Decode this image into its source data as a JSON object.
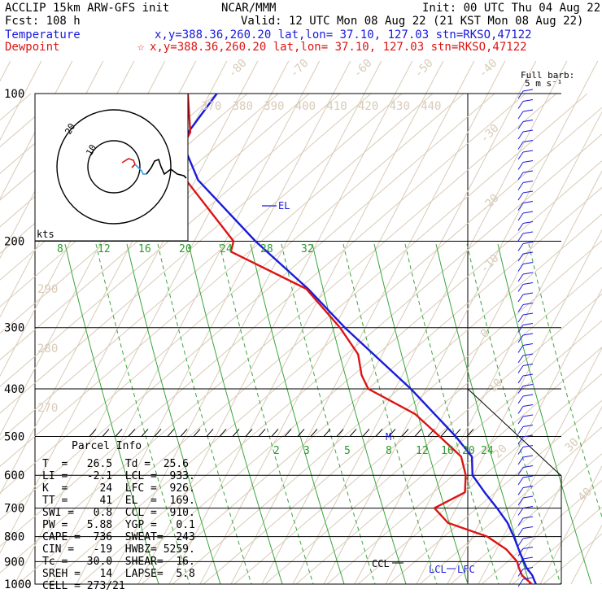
{
  "header": {
    "line1_left": "ACCLIP 15km ARW-GFS init",
    "line1_mid": "NCAR/MMM",
    "line1_right": "Init: 00 UTC Thu 04 Aug 22",
    "line2_left": "Fcst:  108 h",
    "line2_right": "Valid: 12 UTC Mon 08 Aug 22 (21 KST Mon 08 Aug 22)",
    "line3_label": "Temperature",
    "line3_info": "x,y=388.36,260.20   lat,lon= 37.10, 127.03  stn=RKSO,47122",
    "line4_label": "Dewpoint",
    "line4_star": "☆",
    "line4_info": "x,y=388.36,260.20   lat,lon= 37.10, 127.03  stn=RKSO,47122"
  },
  "barb_label_1": "Full barb:",
  "barb_label_2": "5 m s⁻¹",
  "hodograph": {
    "unit": "kts",
    "ring_labels": [
      "10",
      "20"
    ]
  },
  "markers": {
    "el": "EL",
    "m": "M",
    "ccl": "CCL",
    "lcl": "LCL",
    "lfc": "LFC"
  },
  "parcel_info": {
    "title": "Parcel Info",
    "rows": [
      "T  =   26.5  Td =  25.6",
      "LI =   -2.1  LCL =  933.",
      "K  =     24  LFC =  926.",
      "TT =     41  EL  =  169.",
      "SWI =   0.8  CCL =  910.",
      "PW =   5.88  YGP =   0.1",
      "CAPE =  736  SWEAT=  243",
      "CIN =   -19  HWBZ= 5259.",
      "Tc =   30.0  SHEAR=  16.",
      "SREH =   14  LAPSE=  5.8",
      "CELL = 273/21"
    ]
  },
  "colors": {
    "temperature": "#1a1adc",
    "dewpoint": "#dc1414",
    "mixing_ratio": "#3aa53a",
    "adiabat": "#d8cbb8"
  },
  "chart_data": {
    "type": "line",
    "title": "",
    "ylabel": "",
    "xlabel": "",
    "pressure_levels": [
      "100",
      "200",
      "300",
      "400",
      "500",
      "600",
      "700",
      "800",
      "900",
      "1000"
    ],
    "mixing_ratio_labels_upper": [
      "8",
      "12",
      "16",
      "20",
      "24",
      "28",
      "32"
    ],
    "mixing_ratio_labels_lower": [
      "2",
      "3",
      "5",
      "8",
      "12",
      "16",
      "20",
      "24"
    ],
    "isotherm_labels": [
      "-80",
      "-70",
      "-60",
      "-50",
      "-40",
      "-30",
      "-20",
      "-10",
      "0",
      "10",
      "20",
      "30",
      "40"
    ],
    "theta_labels_top": [
      "370",
      "380",
      "390",
      "400",
      "410",
      "420",
      "430",
      "440"
    ],
    "theta_labels_left": [
      "290",
      "280",
      "270"
    ],
    "series": [
      {
        "name": "Temperature",
        "color": "#1a1adc",
        "p": [
          1000,
          985,
          960,
          925,
          900,
          860,
          800,
          750,
          700,
          650,
          600,
          550,
          500,
          400,
          300,
          250,
          200,
          150,
          125,
          100
        ],
        "t": [
          26.5,
          26.0,
          25.2,
          23.4,
          22.5,
          21.0,
          18.8,
          16.6,
          13.4,
          9.7,
          6.0,
          4.8,
          0.0,
          -12.8,
          -31.1,
          -41.6,
          -56.1,
          -72.5,
          -78.4,
          -73.3
        ]
      },
      {
        "name": "Dewpoint",
        "color": "#dc1414",
        "p": [
          1000,
          985,
          960,
          925,
          900,
          850,
          800,
          750,
          700,
          650,
          600,
          550,
          500,
          450,
          400,
          375,
          340,
          300,
          250,
          210,
          200,
          150,
          140,
          120,
          100
        ],
        "t": [
          25.6,
          24.6,
          22.9,
          21.7,
          21.0,
          17.9,
          12.9,
          3.3,
          -0.6,
          5.3,
          4.5,
          2.4,
          -3.6,
          -10.4,
          -22.3,
          -24.6,
          -26.6,
          -32.2,
          -42.0,
          -61.0,
          -61.0,
          -75.2,
          -79.1,
          -77.0,
          -79.8
        ]
      }
    ]
  }
}
